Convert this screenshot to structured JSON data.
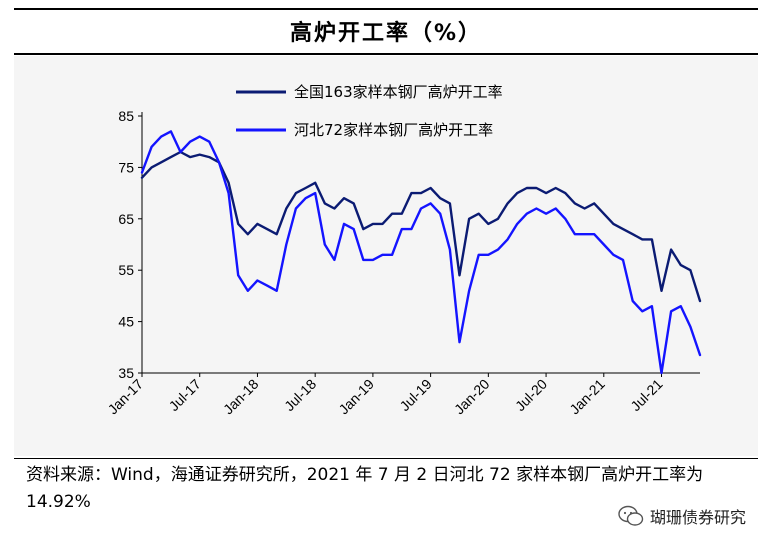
{
  "title": "高炉开工率（%）",
  "source_note": "资料来源：Wind，海通证券研究所，2021 年 7 月 2 日河北 72 家样本钢厂高炉开工率为 14.92%",
  "watermark": "瑚珊债券研究",
  "colors": {
    "national": "#0b1b73",
    "hebei": "#1414ff",
    "background": "#f5f5f5"
  },
  "chart_data": {
    "type": "line",
    "title": "高炉开工率（%）",
    "ylim": [
      35,
      85
    ],
    "yticks": [
      35,
      45,
      55,
      65,
      75,
      85
    ],
    "xlim": [
      "2017-01",
      "2021-11"
    ],
    "xticks": [
      "Jan-17",
      "Jul-17",
      "Jan-18",
      "Jul-18",
      "Jan-19",
      "Jul-19",
      "Jan-20",
      "Jul-20",
      "Jan-21",
      "Jul-21"
    ],
    "grid": false,
    "legend_position": "top",
    "series": [
      {
        "name": "全国163家样本钢厂高炉开工率",
        "color": "#0b1b73",
        "points": [
          [
            "2017-01",
            73
          ],
          [
            "2017-02",
            75
          ],
          [
            "2017-03",
            76
          ],
          [
            "2017-04",
            77
          ],
          [
            "2017-05",
            78
          ],
          [
            "2017-06",
            77
          ],
          [
            "2017-07",
            77.5
          ],
          [
            "2017-08",
            77
          ],
          [
            "2017-09",
            76
          ],
          [
            "2017-10",
            72
          ],
          [
            "2017-11",
            64
          ],
          [
            "2017-12",
            62
          ],
          [
            "2018-01",
            64
          ],
          [
            "2018-02",
            63
          ],
          [
            "2018-03",
            62
          ],
          [
            "2018-04",
            67
          ],
          [
            "2018-05",
            70
          ],
          [
            "2018-06",
            71
          ],
          [
            "2018-07",
            72
          ],
          [
            "2018-08",
            68
          ],
          [
            "2018-09",
            67
          ],
          [
            "2018-10",
            69
          ],
          [
            "2018-11",
            68
          ],
          [
            "2018-12",
            63
          ],
          [
            "2019-01",
            64
          ],
          [
            "2019-02",
            64
          ],
          [
            "2019-03",
            66
          ],
          [
            "2019-04",
            66
          ],
          [
            "2019-05",
            70
          ],
          [
            "2019-06",
            70
          ],
          [
            "2019-07",
            71
          ],
          [
            "2019-08",
            69
          ],
          [
            "2019-09",
            68
          ],
          [
            "2019-10",
            54
          ],
          [
            "2019-11",
            65
          ],
          [
            "2019-12",
            66
          ],
          [
            "2020-01",
            64
          ],
          [
            "2020-02",
            65
          ],
          [
            "2020-03",
            68
          ],
          [
            "2020-04",
            70
          ],
          [
            "2020-05",
            71
          ],
          [
            "2020-06",
            71
          ],
          [
            "2020-07",
            70
          ],
          [
            "2020-08",
            71
          ],
          [
            "2020-09",
            70
          ],
          [
            "2020-10",
            68
          ],
          [
            "2020-11",
            67
          ],
          [
            "2020-12",
            68
          ],
          [
            "2021-01",
            66
          ],
          [
            "2021-02",
            64
          ],
          [
            "2021-03",
            63
          ],
          [
            "2021-04",
            62
          ],
          [
            "2021-05",
            61
          ],
          [
            "2021-06",
            61
          ],
          [
            "2021-07",
            51
          ],
          [
            "2021-08",
            59
          ],
          [
            "2021-09",
            56
          ],
          [
            "2021-10",
            55
          ],
          [
            "2021-11",
            49
          ]
        ]
      },
      {
        "name": "河北72家样本钢厂高炉开工率",
        "color": "#1414ff",
        "points": [
          [
            "2017-01",
            74
          ],
          [
            "2017-02",
            79
          ],
          [
            "2017-03",
            81
          ],
          [
            "2017-04",
            82
          ],
          [
            "2017-05",
            78
          ],
          [
            "2017-06",
            80
          ],
          [
            "2017-07",
            81
          ],
          [
            "2017-08",
            80
          ],
          [
            "2017-09",
            76
          ],
          [
            "2017-10",
            70
          ],
          [
            "2017-11",
            54
          ],
          [
            "2017-12",
            51
          ],
          [
            "2018-01",
            53
          ],
          [
            "2018-02",
            52
          ],
          [
            "2018-03",
            51
          ],
          [
            "2018-04",
            60
          ],
          [
            "2018-05",
            67
          ],
          [
            "2018-06",
            69
          ],
          [
            "2018-07",
            70
          ],
          [
            "2018-08",
            60
          ],
          [
            "2018-09",
            57
          ],
          [
            "2018-10",
            64
          ],
          [
            "2018-11",
            63
          ],
          [
            "2018-12",
            57
          ],
          [
            "2019-01",
            57
          ],
          [
            "2019-02",
            58
          ],
          [
            "2019-03",
            58
          ],
          [
            "2019-04",
            63
          ],
          [
            "2019-05",
            63
          ],
          [
            "2019-06",
            67
          ],
          [
            "2019-07",
            68
          ],
          [
            "2019-08",
            66
          ],
          [
            "2019-09",
            59
          ],
          [
            "2019-10",
            41
          ],
          [
            "2019-11",
            51
          ],
          [
            "2019-12",
            58
          ],
          [
            "2020-01",
            58
          ],
          [
            "2020-02",
            59
          ],
          [
            "2020-03",
            61
          ],
          [
            "2020-04",
            64
          ],
          [
            "2020-05",
            66
          ],
          [
            "2020-06",
            67
          ],
          [
            "2020-07",
            66
          ],
          [
            "2020-08",
            67
          ],
          [
            "2020-09",
            65
          ],
          [
            "2020-10",
            62
          ],
          [
            "2020-11",
            62
          ],
          [
            "2020-12",
            62
          ],
          [
            "2021-01",
            60
          ],
          [
            "2021-02",
            58
          ],
          [
            "2021-03",
            57
          ],
          [
            "2021-04",
            49
          ],
          [
            "2021-05",
            47
          ],
          [
            "2021-06",
            48
          ],
          [
            "2021-07",
            35
          ],
          [
            "2021-08",
            47
          ],
          [
            "2021-09",
            48
          ],
          [
            "2021-10",
            44
          ],
          [
            "2021-11",
            38.5
          ]
        ]
      }
    ]
  }
}
